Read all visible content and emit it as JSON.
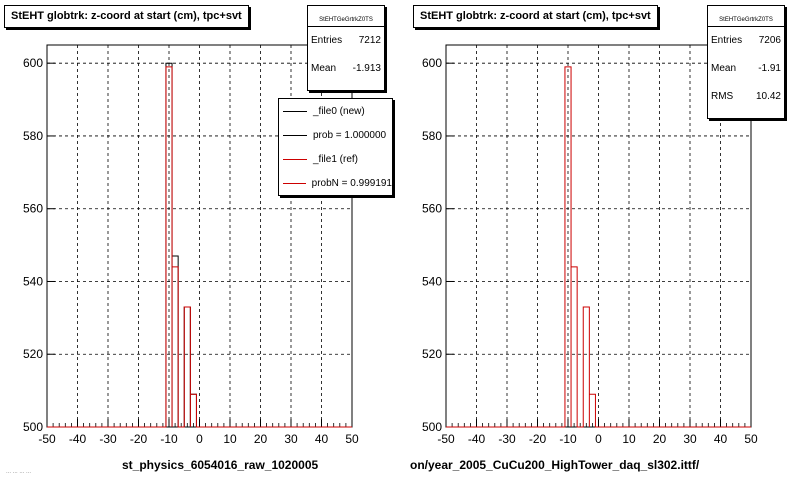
{
  "footer_text": "... ... ... ...",
  "chart_data": [
    {
      "type": "histogram",
      "title": "StEHT globtrk: z-coord at start (cm), tpc+svt",
      "xlabel": "st_physics_6054016_raw_1020005",
      "xlim": [
        -50,
        50
      ],
      "ylim": [
        500,
        605
      ],
      "xticks": [
        "-50",
        "-40",
        "-30",
        "-20",
        "-10",
        "0",
        "10",
        "20",
        "30",
        "40",
        "50"
      ],
      "yticks": [
        "500",
        "520",
        "540",
        "560",
        "580",
        "600"
      ],
      "grid": true,
      "bins": [
        {
          "x0": -11,
          "x1": -9,
          "value": 600
        },
        {
          "x0": -9,
          "x1": -7,
          "value": 547
        },
        {
          "x0": -7,
          "x1": -5,
          "value": 500
        },
        {
          "x0": -5,
          "x1": -3,
          "value": 533
        },
        {
          "x0": -3,
          "x1": -1,
          "value": 509
        }
      ],
      "ref_bins": [
        {
          "x0": -11,
          "x1": -9,
          "value": 599
        },
        {
          "x0": -9,
          "x1": -7,
          "value": 544
        },
        {
          "x0": -7,
          "x1": -5,
          "value": 500
        },
        {
          "x0": -5,
          "x1": -3,
          "value": 533
        },
        {
          "x0": -3,
          "x1": -1,
          "value": 509
        }
      ],
      "stats": {
        "name": "StEHTGeGrtrkZ0TS",
        "entries_label": "Entries",
        "entries": "7212",
        "mean_label": "Mean",
        "mean": "-1.913"
      },
      "legend": {
        "placement": "top-right",
        "entries": [
          {
            "label": "_file0 (new)",
            "color": "#000000"
          },
          {
            "label": "prob = 1.000000",
            "color": "#000000"
          },
          {
            "label": "_file1 (ref)",
            "color": "#cc0000"
          },
          {
            "label": "probN = 0.999191",
            "color": "#cc0000"
          }
        ]
      }
    },
    {
      "type": "histogram",
      "title": "StEHT globtrk: z-coord at start (cm), tpc+svt",
      "xlabel": "on/year_2005_CuCu200_HighTower_daq_sl302.ittf/",
      "xlim": [
        -50,
        50
      ],
      "ylim": [
        500,
        605
      ],
      "xticks": [
        "-50",
        "-40",
        "-30",
        "-20",
        "-10",
        "0",
        "10",
        "20",
        "30",
        "40",
        "50"
      ],
      "yticks": [
        "500",
        "520",
        "540",
        "560",
        "580",
        "600"
      ],
      "grid": true,
      "ref_bins": [
        {
          "x0": -11,
          "x1": -9,
          "value": 599
        },
        {
          "x0": -9,
          "x1": -7,
          "value": 544
        },
        {
          "x0": -7,
          "x1": -5,
          "value": 500
        },
        {
          "x0": -5,
          "x1": -3,
          "value": 533
        },
        {
          "x0": -3,
          "x1": -1,
          "value": 509
        }
      ],
      "stats": {
        "name": "StEHTGeGrtrkZ0TS",
        "entries_label": "Entries",
        "entries": "7206",
        "mean_label": "Mean",
        "mean": "-1.91",
        "rms_label": "RMS",
        "rms": "10.42"
      }
    }
  ]
}
